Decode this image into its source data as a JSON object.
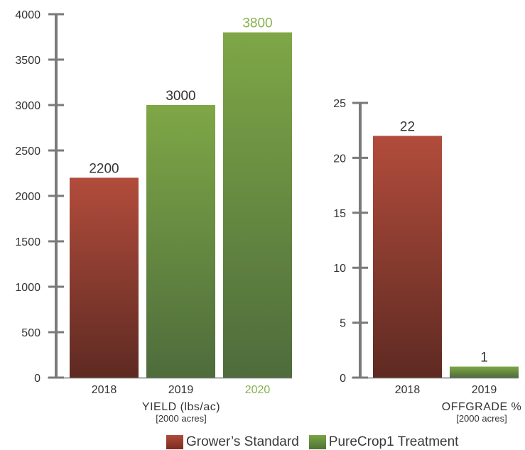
{
  "colors": {
    "grower_top": "#b24c3c",
    "grower_bottom": "#5e2a22",
    "purecrop_top": "#7ea746",
    "purecrop_bottom": "#4e6c3c",
    "axis": "#7a7a7a",
    "highlight_label": "#86b24e",
    "text": "#333333"
  },
  "legend": {
    "grower": "Grower’s Standard",
    "purecrop": "PureCrop1 Treatment"
  },
  "chart_data": [
    {
      "type": "bar",
      "xlabel": "YIELD (lbs/ac)",
      "xsublabel": "[2000 acres]",
      "ylim": [
        0,
        4000
      ],
      "yticks": [
        0,
        500,
        1000,
        1500,
        2000,
        2500,
        3000,
        3500,
        4000
      ],
      "categories": [
        "2018",
        "2019",
        "2020"
      ],
      "values": [
        2200,
        3000,
        3800
      ],
      "data_labels": [
        "2200",
        "3000",
        "3800"
      ],
      "bar_series": [
        "grower",
        "purecrop",
        "purecrop"
      ],
      "highlight_category": "2020"
    },
    {
      "type": "bar",
      "xlabel": "OFFGRADE %",
      "xsublabel": "[2000 acres]",
      "ylim": [
        0,
        25
      ],
      "yticks": [
        0,
        5,
        10,
        15,
        20,
        25
      ],
      "categories": [
        "2018",
        "2019"
      ],
      "values": [
        22,
        1
      ],
      "data_labels": [
        "22",
        "1"
      ],
      "bar_series": [
        "grower",
        "purecrop"
      ]
    }
  ]
}
